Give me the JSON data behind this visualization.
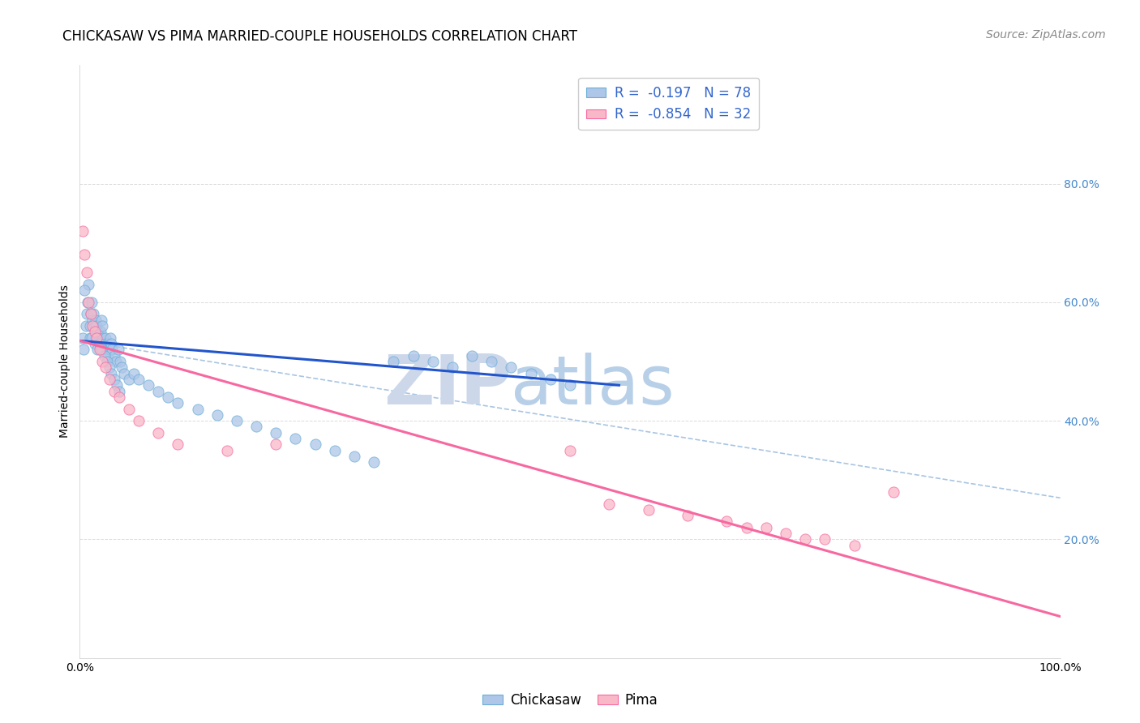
{
  "title": "CHICKASAW VS PIMA MARRIED-COUPLE HOUSEHOLDS CORRELATION CHART",
  "source": "Source: ZipAtlas.com",
  "ylabel": "Married-couple Households",
  "xlim": [
    0,
    1.0
  ],
  "ylim": [
    0,
    1.0
  ],
  "chickasaw_color": "#aec6e8",
  "chickasaw_edge": "#6aaed6",
  "pima_color": "#f9b8c8",
  "pima_edge": "#f768a1",
  "blue_line_color": "#2255cc",
  "pink_line_color": "#f768a1",
  "dashed_line_color": "#99bbdd",
  "watermark_color": "#ccddf0",
  "legend_R1": "R =  -0.197",
  "legend_N1": "N = 78",
  "legend_R2": "R =  -0.854",
  "legend_N2": "N = 32",
  "chickasaw_x": [
    0.003,
    0.004,
    0.006,
    0.007,
    0.008,
    0.009,
    0.01,
    0.01,
    0.011,
    0.012,
    0.013,
    0.014,
    0.015,
    0.016,
    0.016,
    0.017,
    0.018,
    0.019,
    0.02,
    0.021,
    0.022,
    0.023,
    0.024,
    0.025,
    0.026,
    0.027,
    0.028,
    0.029,
    0.03,
    0.031,
    0.032,
    0.033,
    0.035,
    0.037,
    0.039,
    0.041,
    0.043,
    0.045,
    0.05,
    0.055,
    0.06,
    0.07,
    0.08,
    0.09,
    0.1,
    0.12,
    0.14,
    0.16,
    0.18,
    0.2,
    0.22,
    0.24,
    0.26,
    0.28,
    0.3,
    0.32,
    0.34,
    0.36,
    0.38,
    0.4,
    0.42,
    0.44,
    0.46,
    0.48,
    0.5,
    0.005,
    0.012,
    0.015,
    0.018,
    0.02,
    0.022,
    0.025,
    0.028,
    0.03,
    0.032,
    0.035,
    0.038,
    0.04
  ],
  "chickasaw_y": [
    0.54,
    0.52,
    0.56,
    0.58,
    0.6,
    0.63,
    0.54,
    0.56,
    0.58,
    0.6,
    0.57,
    0.58,
    0.56,
    0.57,
    0.54,
    0.56,
    0.55,
    0.54,
    0.53,
    0.55,
    0.57,
    0.56,
    0.54,
    0.53,
    0.54,
    0.52,
    0.53,
    0.51,
    0.52,
    0.54,
    0.53,
    0.52,
    0.51,
    0.5,
    0.52,
    0.5,
    0.49,
    0.48,
    0.47,
    0.48,
    0.47,
    0.46,
    0.45,
    0.44,
    0.43,
    0.42,
    0.41,
    0.4,
    0.39,
    0.38,
    0.37,
    0.36,
    0.35,
    0.34,
    0.33,
    0.5,
    0.51,
    0.5,
    0.49,
    0.51,
    0.5,
    0.49,
    0.48,
    0.47,
    0.46,
    0.62,
    0.54,
    0.53,
    0.52,
    0.53,
    0.52,
    0.51,
    0.5,
    0.49,
    0.48,
    0.47,
    0.46,
    0.45
  ],
  "pima_x": [
    0.003,
    0.005,
    0.007,
    0.009,
    0.011,
    0.013,
    0.015,
    0.017,
    0.02,
    0.023,
    0.026,
    0.03,
    0.035,
    0.04,
    0.05,
    0.06,
    0.08,
    0.1,
    0.15,
    0.2,
    0.5,
    0.54,
    0.58,
    0.62,
    0.66,
    0.68,
    0.7,
    0.72,
    0.74,
    0.76,
    0.79,
    0.83
  ],
  "pima_y": [
    0.72,
    0.68,
    0.65,
    0.6,
    0.58,
    0.56,
    0.55,
    0.54,
    0.52,
    0.5,
    0.49,
    0.47,
    0.45,
    0.44,
    0.42,
    0.4,
    0.38,
    0.36,
    0.35,
    0.36,
    0.35,
    0.26,
    0.25,
    0.24,
    0.23,
    0.22,
    0.22,
    0.21,
    0.2,
    0.2,
    0.19,
    0.28
  ],
  "blue_line_x": [
    0.0,
    0.55
  ],
  "blue_line_y": [
    0.535,
    0.46
  ],
  "pink_line_x": [
    0.0,
    1.0
  ],
  "pink_line_y": [
    0.535,
    0.07
  ],
  "dashed_line_x": [
    0.0,
    1.0
  ],
  "dashed_line_y": [
    0.535,
    0.27
  ],
  "background_color": "#ffffff",
  "grid_color": "#cccccc",
  "title_fontsize": 12,
  "axis_fontsize": 10,
  "legend_fontsize": 12,
  "source_fontsize": 10
}
